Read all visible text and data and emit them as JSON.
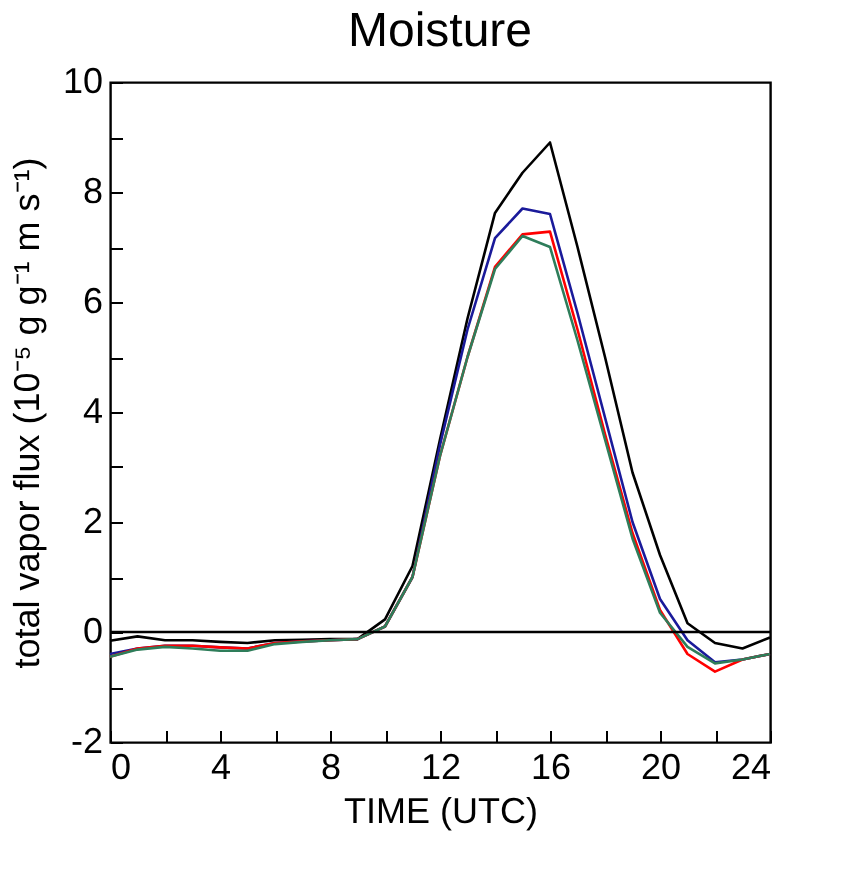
{
  "chart_data": {
    "type": "line",
    "title": "Moisture",
    "xlabel": "TIME (UTC)",
    "ylabel": "total vapor flux (10⁻⁵ g g⁻¹ m s⁻¹)",
    "x": [
      0,
      1,
      2,
      3,
      4,
      5,
      6,
      7,
      8,
      9,
      10,
      11,
      12,
      13,
      14,
      15,
      16,
      17,
      18,
      19,
      20,
      21,
      22,
      23,
      24
    ],
    "series": [
      {
        "color": "#000000",
        "values": [
          -0.16,
          -0.08,
          -0.15,
          -0.15,
          -0.18,
          -0.2,
          -0.15,
          -0.14,
          -0.13,
          -0.13,
          0.23,
          1.2,
          3.5,
          5.7,
          7.62,
          8.35,
          8.9,
          7.0,
          5.0,
          2.9,
          1.4,
          0.16,
          -0.2,
          -0.3,
          -0.1
        ]
      },
      {
        "color": "#1a1a9a",
        "values": [
          -0.4,
          -0.3,
          -0.25,
          -0.25,
          -0.28,
          -0.3,
          -0.2,
          -0.17,
          -0.15,
          -0.13,
          0.1,
          1.0,
          3.4,
          5.5,
          7.16,
          7.7,
          7.6,
          5.8,
          3.9,
          2.0,
          0.6,
          -0.15,
          -0.55,
          -0.5,
          -0.4
        ]
      },
      {
        "color": "#ff0000",
        "values": [
          -0.45,
          -0.3,
          -0.25,
          -0.25,
          -0.28,
          -0.3,
          -0.2,
          -0.17,
          -0.15,
          -0.13,
          0.1,
          1.0,
          3.2,
          5.0,
          6.64,
          7.23,
          7.28,
          5.5,
          3.6,
          1.8,
          0.4,
          -0.4,
          -0.72,
          -0.5,
          -0.4
        ]
      },
      {
        "color": "#2e7d5a",
        "values": [
          -0.45,
          -0.32,
          -0.27,
          -0.3,
          -0.34,
          -0.34,
          -0.22,
          -0.18,
          -0.15,
          -0.13,
          0.1,
          1.0,
          3.2,
          5.0,
          6.6,
          7.2,
          7.0,
          5.3,
          3.5,
          1.7,
          0.35,
          -0.27,
          -0.57,
          -0.5,
          -0.4
        ]
      }
    ],
    "xlim": [
      0,
      24
    ],
    "xticks": [
      0,
      {
        "value": 2,
        "label": null
      },
      4,
      {
        "value": 6,
        "label": null
      },
      8,
      {
        "value": 10,
        "label": null
      },
      12,
      {
        "value": 14,
        "label": null
      },
      16,
      {
        "value": 18,
        "label": null
      },
      20,
      {
        "value": 22,
        "label": null
      },
      24
    ],
    "ylim": [
      -2,
      10
    ],
    "yticks": [
      -2,
      {
        "value": -1,
        "label": null
      },
      0,
      {
        "value": 1,
        "label": null
      },
      2,
      {
        "value": 3,
        "label": null
      },
      4,
      {
        "value": 5,
        "label": null
      },
      6,
      {
        "value": 7,
        "label": null
      },
      8,
      {
        "value": 9,
        "label": null
      },
      10
    ],
    "ref_lines": [
      {
        "axis": "y",
        "value": 0,
        "color": "#000000"
      }
    ],
    "grid": false,
    "legend": false,
    "marker": "none",
    "line_style": "solid"
  }
}
